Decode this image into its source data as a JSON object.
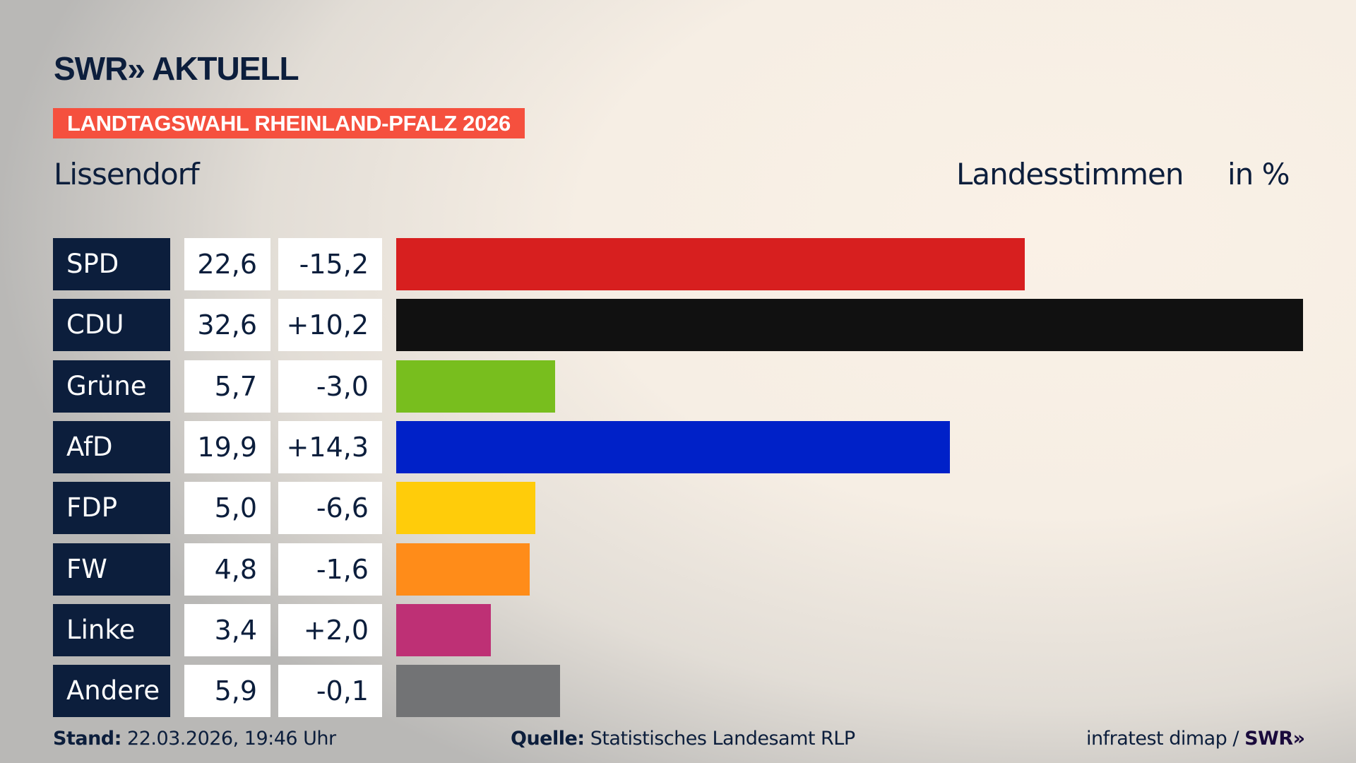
{
  "header": {
    "logo": "SWR» AKTUELL",
    "banner": "LANDTAGSWAHL RHEINLAND-PFALZ 2026",
    "place": "Lissendorf",
    "vote_type": "Landesstimmen",
    "unit": "in %"
  },
  "chart_data": {
    "type": "bar",
    "orientation": "horizontal",
    "title": "",
    "xlabel": "",
    "ylabel": "",
    "xlim": [
      0,
      32.6
    ],
    "grid": false,
    "categories": [
      "SPD",
      "CDU",
      "Grüne",
      "AfD",
      "FDP",
      "FW",
      "Linke",
      "Andere"
    ],
    "values": [
      22.6,
      32.6,
      5.7,
      19.9,
      5.0,
      4.8,
      3.4,
      5.9
    ],
    "value_labels": [
      "22,6",
      "32,6",
      "5,7",
      "19,9",
      "5,0",
      "4,8",
      "3,4",
      "5,9"
    ],
    "change_labels": [
      "-15,2",
      "+10,2",
      "-3,0",
      "+14,3",
      "-6,6",
      "-1,6",
      "+2,0",
      "-0,1"
    ],
    "changes": [
      -15.2,
      10.2,
      -3.0,
      14.3,
      -6.6,
      -1.6,
      2.0,
      -0.1
    ],
    "colors": [
      "#d71f1f",
      "#111111",
      "#78be1e",
      "#0021c8",
      "#ffcc0a",
      "#ff8c19",
      "#be3075",
      "#727375"
    ]
  },
  "footer": {
    "stand_label": "Stand:",
    "stand_value": "22.03.2026, 19:46 Uhr",
    "source_label": "Quelle:",
    "source_value": "Statistisches Landesamt RLP",
    "credit": "infratest dimap /",
    "credit_logo": "SWR»"
  }
}
